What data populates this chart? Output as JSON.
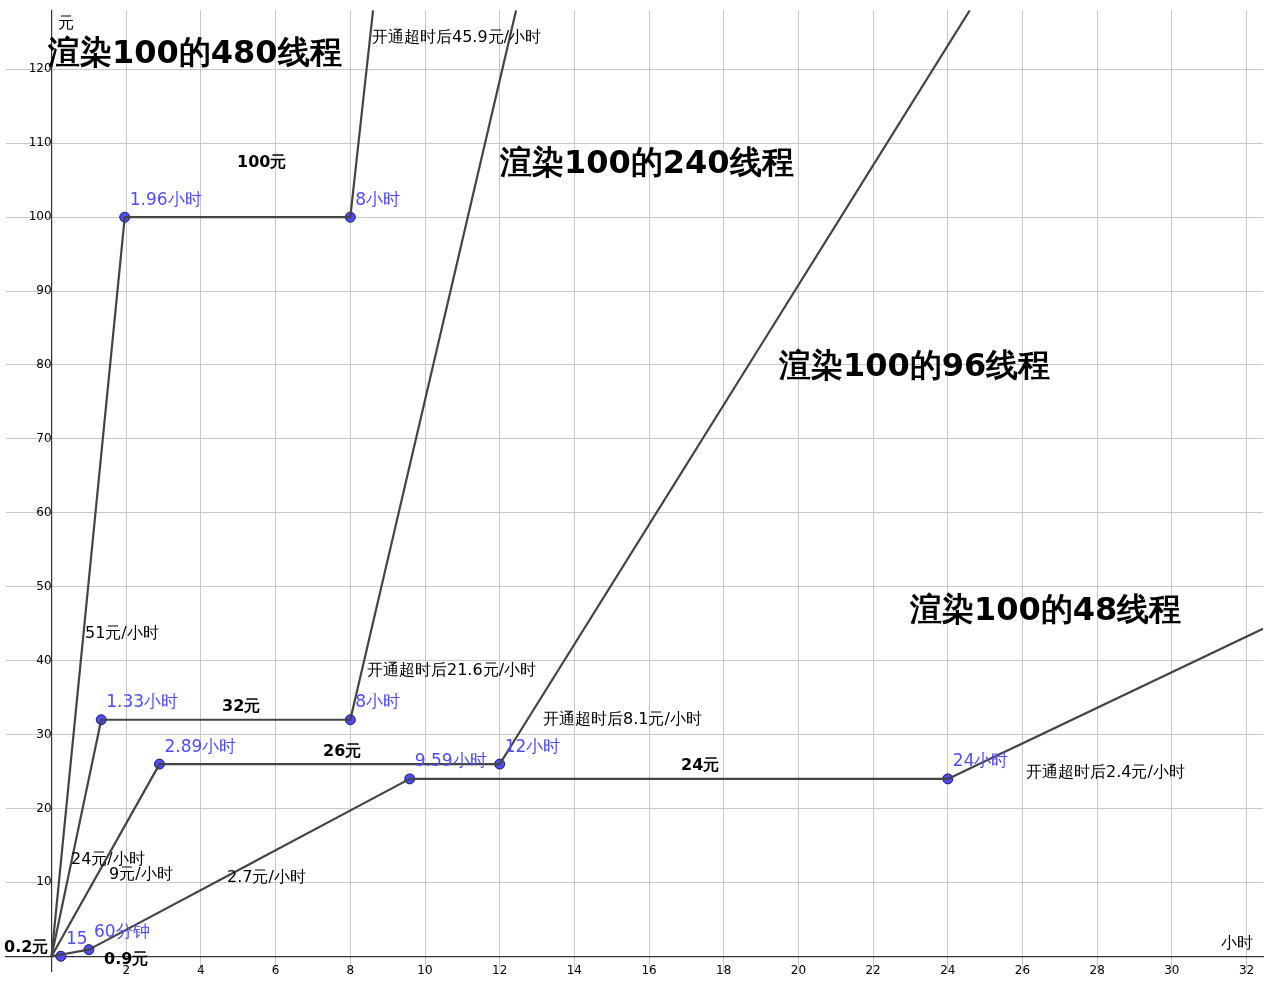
{
  "chart_data": {
    "type": "line",
    "xlabel": "小时",
    "ylabel": "元",
    "xlim": [
      -1.22,
      32.44
    ],
    "ylim": [
      -2.1,
      128
    ],
    "xticks": [
      {
        "value": 0,
        "label": null
      },
      2,
      4,
      6,
      8,
      10,
      12,
      14,
      16,
      18,
      20,
      22,
      24,
      26,
      28,
      30,
      32
    ],
    "yticks": [
      {
        "value": 0,
        "label": null
      },
      10,
      20,
      30,
      40,
      50,
      60,
      70,
      80,
      90,
      100,
      110,
      120
    ],
    "grid": true,
    "marker": "none",
    "line_style": "solid",
    "series": [
      {
        "color": "#444444",
        "x": [
          0,
          1.96,
          8,
          8.61
        ],
        "values": [
          0,
          100,
          100,
          128
        ]
      },
      {
        "color": "#444444",
        "x": [
          0,
          1.33,
          8,
          12.44
        ],
        "values": [
          0,
          32,
          32,
          128
        ]
      },
      {
        "color": "#444444",
        "x": [
          0,
          2.89,
          12,
          24.59
        ],
        "values": [
          0,
          26,
          26,
          128
        ]
      },
      {
        "color": "#444444",
        "x": [
          0,
          1,
          9.59,
          24,
          32.44
        ],
        "values": [
          0,
          0.9,
          24,
          24,
          44.3
        ]
      },
      {
        "type": "scatter",
        "marker": "circle",
        "color": "#4d4dff",
        "x": [
          0.25,
          1,
          1.96,
          8,
          1.33,
          8,
          2.89,
          12,
          9.59,
          24
        ],
        "values": [
          0,
          0.9,
          100,
          100,
          32,
          32,
          26,
          26,
          24,
          24
        ]
      }
    ],
    "annotations": [
      {
        "text": "15",
        "x": 0.25,
        "y": 0
      },
      {
        "text": "60分钟",
        "x": 1,
        "y": 0.9
      },
      {
        "text": "1.96小时",
        "x": 1.96,
        "y": 100
      },
      {
        "text": "8小时",
        "x": 8,
        "y": 100
      },
      {
        "text": "1.33小时",
        "x": 1.33,
        "y": 32
      },
      {
        "text": "8小时",
        "x": 8,
        "y": 32
      },
      {
        "text": "2.89小时",
        "x": 2.89,
        "y": 26
      },
      {
        "text": "12小时",
        "x": 12,
        "y": 26
      },
      {
        "text": "9.59小时",
        "x": 9.59,
        "y": 24
      },
      {
        "text": "24小时",
        "x": 24,
        "y": 24
      },
      "渲染100的480线程",
      "开通超时后45.9元/小时",
      "100元",
      "渲染100的240线程",
      "渲染100的96线程",
      "渲染100的48线程",
      "51元/小时",
      "开通超时后21.6元/小时",
      "32元",
      "开通超时后8.1元/小时",
      "26元",
      "24元",
      "开通超时后2.4元/小时",
      "24元/小时",
      "9元/小时",
      "2.7元/小时",
      "0.2元",
      "0.9元"
    ]
  }
}
